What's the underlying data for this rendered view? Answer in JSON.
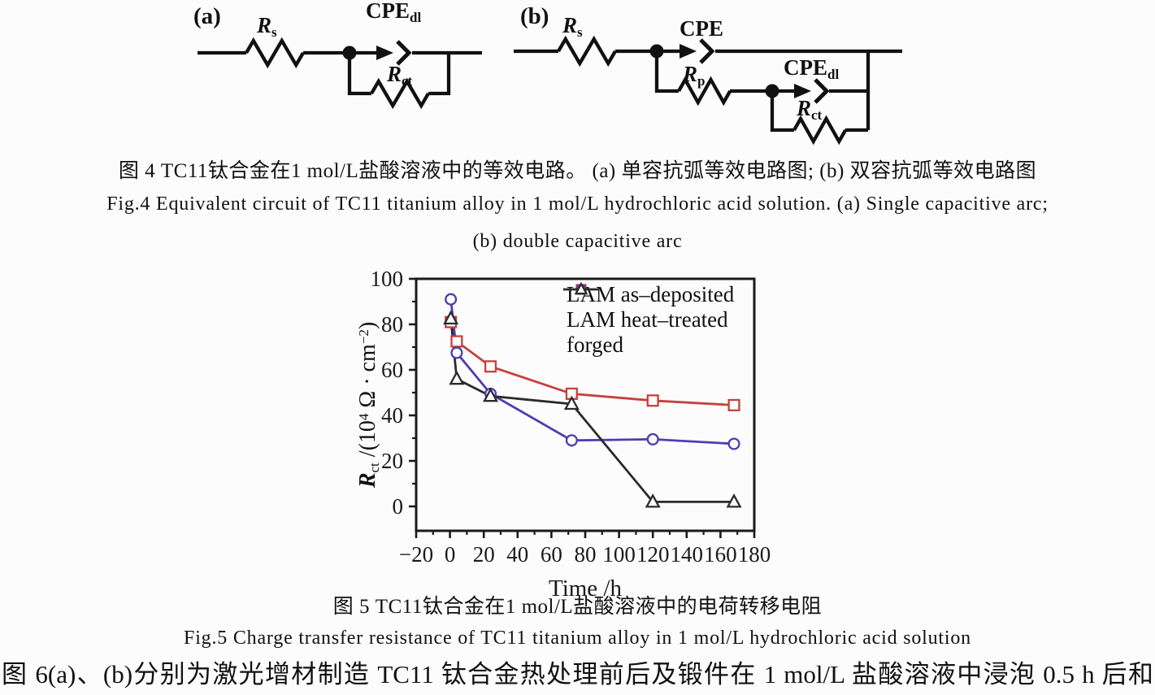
{
  "figure4": {
    "panel_a": {
      "tag": "(a)",
      "rs_sym": "R",
      "rs_sub": "s",
      "cpe_sym": "CPE",
      "cpe_sub": "dl",
      "rct_sym": "R",
      "rct_sub": "ct"
    },
    "panel_b": {
      "tag": "(b)",
      "rs_sym": "R",
      "rs_sub": "s",
      "cpe_sym": "CPE",
      "rp_sym": "R",
      "rp_sub": "p",
      "cpedl_sym": "CPE",
      "cpedl_sub": "dl",
      "rct_sym": "R",
      "rct_sub": "ct"
    },
    "caption_zh": "图 4  TC11钛合金在1 mol/L盐酸溶液中的等效电路。 (a) 单容抗弧等效电路图; (b) 双容抗弧等效电路图",
    "caption_en_line1": "Fig.4  Equivalent circuit of TC11 titanium alloy in 1 mol/L hydrochloric acid solution. (a) Single capacitive arc;",
    "caption_en_line2": "(b) double capacitive arc"
  },
  "figure5": {
    "caption_zh": "图 5  TC11钛合金在1 mol/L盐酸溶液中的电荷转移电阻",
    "caption_en": "Fig.5  Charge transfer resistance of TC11 titanium alloy in 1 mol/L hydrochloric acid solution"
  },
  "body_text": "图 6(a)、(b)分别为激光增材制造 TC11 钛合金热处理前后及锻件在 1 mol/L 盐酸溶液中浸泡 0.5 h 后和",
  "chart_data": {
    "type": "line",
    "title": "",
    "xlabel": "Time /h",
    "ylabel": "Rct /(10⁴ Ω · cm⁻²)",
    "ylabel_parts": {
      "sym": "R",
      "sub": "ct",
      "pre": " /(10",
      "sup1": "4",
      "mid": " Ω · cm",
      "sup2": "−2",
      "post": ")"
    },
    "xlim": [
      -20,
      180
    ],
    "ylim": [
      -11,
      100
    ],
    "x_ticks": [
      -20,
      0,
      20,
      40,
      60,
      80,
      100,
      120,
      140,
      160,
      180
    ],
    "x_tick_labels": [
      "−20",
      "0",
      "20",
      "40",
      "60",
      "80",
      "100",
      "120",
      "140",
      "160",
      "180"
    ],
    "y_ticks": [
      0,
      20,
      40,
      60,
      80,
      100
    ],
    "y_tick_labels": [
      "0",
      "20",
      "40",
      "60",
      "80",
      "100"
    ],
    "minor_tick_step": 10,
    "grid": false,
    "legend_position": "top-right-inside",
    "x": [
      0.5,
      4,
      24,
      72,
      120,
      168
    ],
    "series": [
      {
        "name": "LAM as–deposited",
        "marker": "square",
        "color": "#c5413c",
        "values": [
          81,
          72.5,
          61.5,
          49.5,
          46.5,
          44.5
        ]
      },
      {
        "name": "LAM heat–treated",
        "marker": "circle",
        "color": "#4d3eb3",
        "values": [
          91,
          67.5,
          49.5,
          29,
          29.5,
          27.5
        ]
      },
      {
        "name": "forged",
        "marker": "triangle",
        "color": "#2b2b2b",
        "values": [
          82.5,
          56,
          48.5,
          45,
          2,
          2
        ]
      }
    ]
  },
  "colors": {
    "ink": "#1a1a1a",
    "background": "#fcfcfc",
    "red_series": "#c5413c",
    "blue_series": "#4d3eb3",
    "black_series": "#2b2b2b"
  }
}
